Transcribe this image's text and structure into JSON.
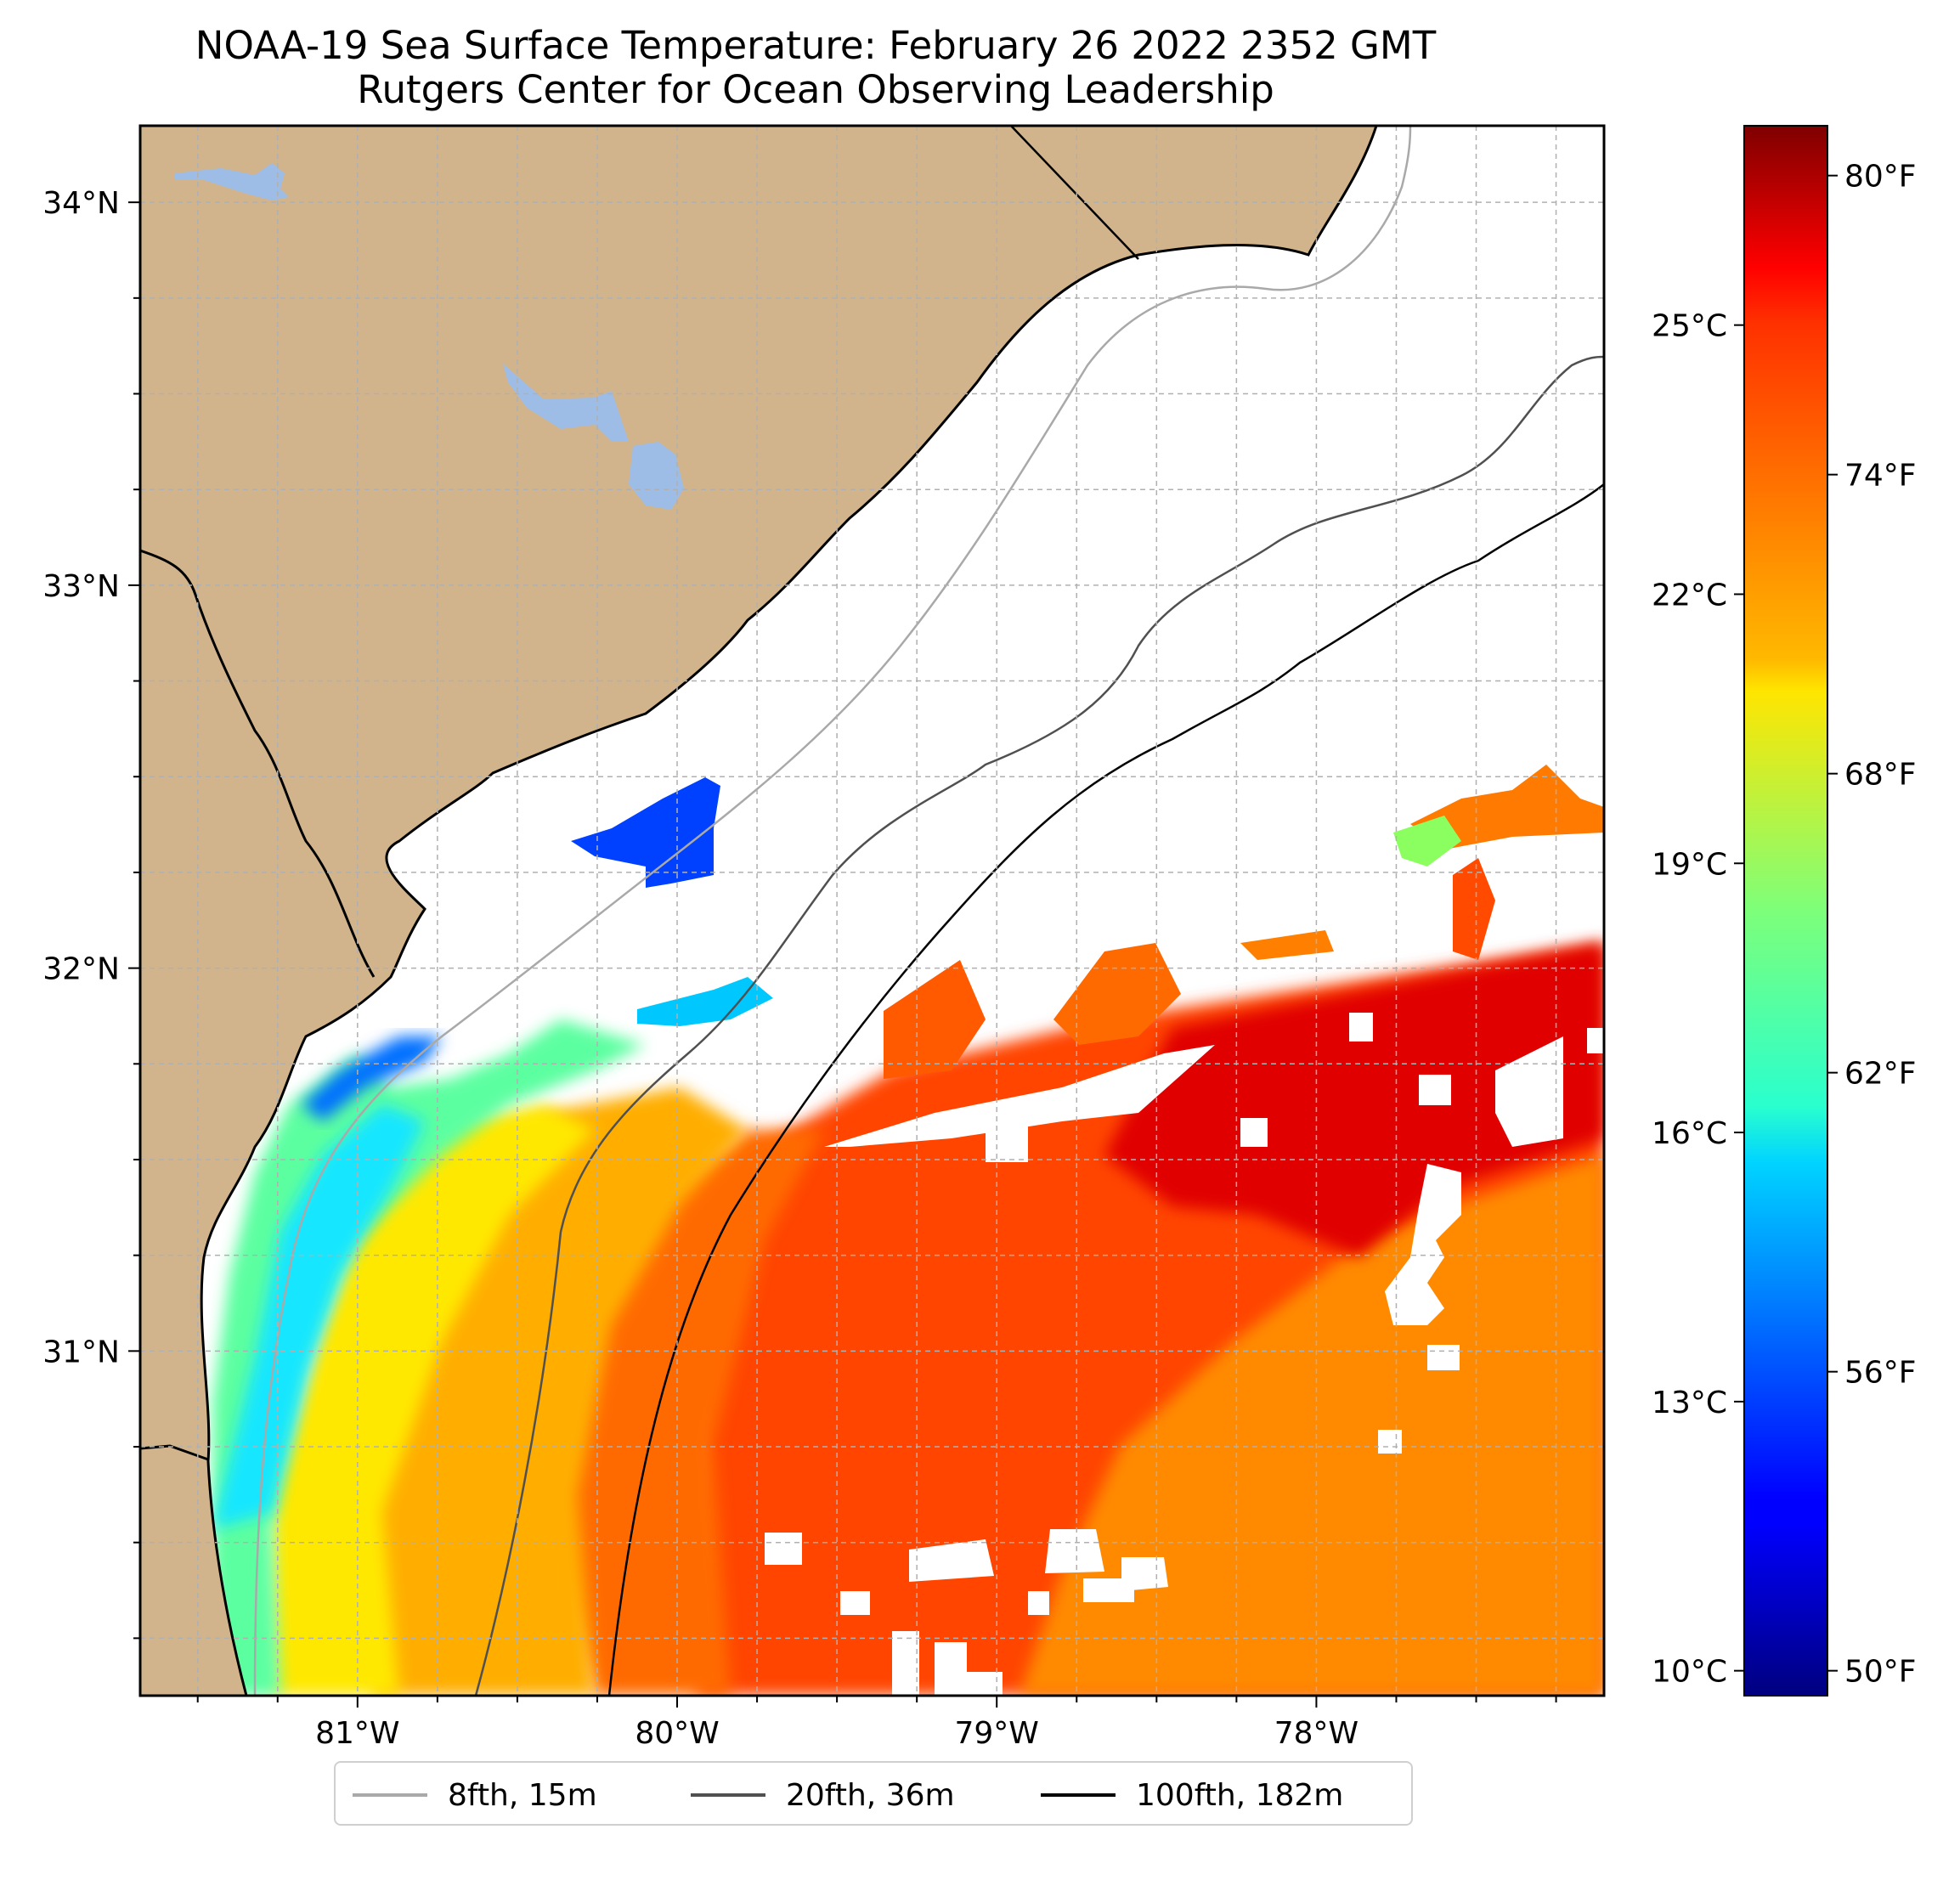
{
  "title": {
    "line1": "NOAA-19 Sea Surface Temperature: February 26 2022 2352 GMT",
    "line2": "Rutgers Center for Ocean Observing Leadership"
  },
  "map": {
    "lat_range": [
      30.1,
      34.2
    ],
    "lon_range": [
      -81.68,
      -77.1
    ],
    "lat_ticks": [
      {
        "value": 34,
        "label": "34°N"
      },
      {
        "value": 33,
        "label": "33°N"
      },
      {
        "value": 32,
        "label": "32°N"
      },
      {
        "value": 31,
        "label": "31°N"
      }
    ],
    "lon_ticks": [
      {
        "value": -81,
        "label": "81°W"
      },
      {
        "value": -80,
        "label": "80°W"
      },
      {
        "value": -79,
        "label": "79°W"
      },
      {
        "value": -78,
        "label": "78°W"
      }
    ],
    "gridlines": true,
    "land_color": "#d2b48c",
    "lake_color": "#9dbce6"
  },
  "colorbar": {
    "colormap": "jet",
    "range_f": [
      49.5,
      81
    ],
    "celsius_ticks": [
      {
        "value": 25,
        "label": "25°C"
      },
      {
        "value": 22,
        "label": "22°C"
      },
      {
        "value": 19,
        "label": "19°C"
      },
      {
        "value": 16,
        "label": "16°C"
      },
      {
        "value": 13,
        "label": "13°C"
      },
      {
        "value": 10,
        "label": "10°C"
      }
    ],
    "fahrenheit_ticks": [
      {
        "value": 80,
        "label": "80°F"
      },
      {
        "value": 74,
        "label": "74°F"
      },
      {
        "value": 68,
        "label": "68°F"
      },
      {
        "value": 62,
        "label": "62°F"
      },
      {
        "value": 56,
        "label": "56°F"
      },
      {
        "value": 50,
        "label": "50°F"
      }
    ]
  },
  "legend": {
    "placement": "bottom-center",
    "items": [
      {
        "label": "8fth, 15m",
        "color": "#a9a9a9"
      },
      {
        "label": "20fth, 36m",
        "color": "#505050"
      },
      {
        "label": "100fth, 182m",
        "color": "#000000"
      }
    ]
  }
}
